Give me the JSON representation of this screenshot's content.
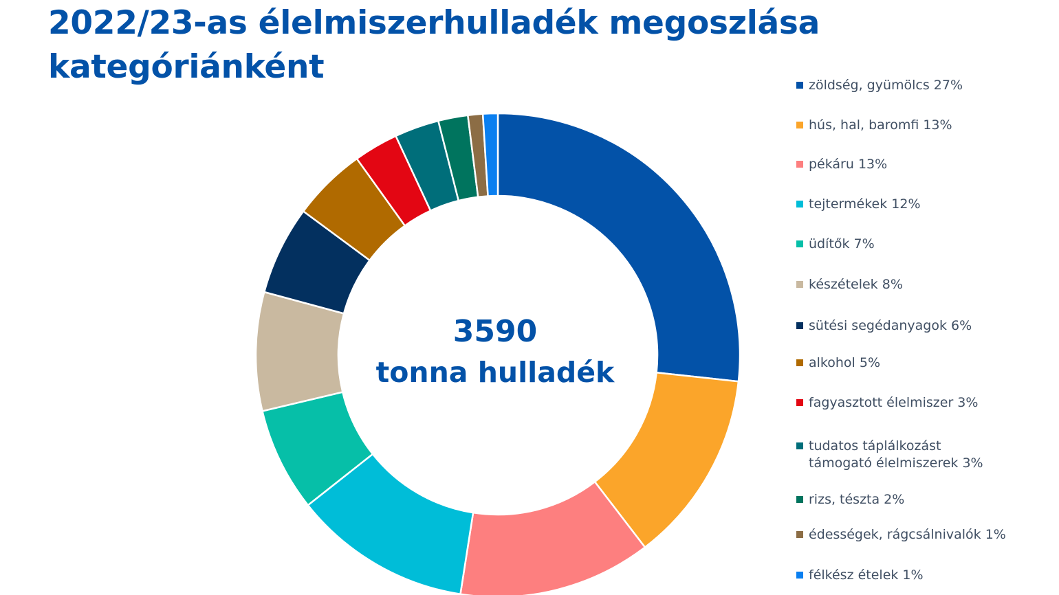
{
  "title": "2022/23-as élelmiszerhulladék megoszlása kategóriánként",
  "center": {
    "value": "3590",
    "caption": "tonna hulladék"
  },
  "chart_data": {
    "type": "pie",
    "donut": true,
    "title": "2022/23-as élelmiszerhulladék megoszlása kategóriánként",
    "legend_position": "right",
    "total_label": "3590 tonna hulladék",
    "unit": "%",
    "categories": [
      "zöldség, gyümölcs",
      "hús, hal, baromfi",
      "pékáru",
      "tejtermékek",
      "üdítők",
      "készételek",
      "sütési segédanyagok",
      "alkohol",
      "fagyasztott élelmiszer",
      "tudatos táplálkozást támogató élelmiszerek",
      "rizs, tészta",
      "édességek, rágcsálnivalók",
      "félkész ételek"
    ],
    "values": [
      27,
      13,
      13,
      12,
      7,
      8,
      6,
      5,
      3,
      3,
      2,
      1,
      1
    ],
    "colors": [
      "#0352a8",
      "#fba52a",
      "#fd7f7f",
      "#00bdd8",
      "#06bfa8",
      "#c9b9a0",
      "#03305f",
      "#b06a00",
      "#e30613",
      "#006e7a",
      "#00745e",
      "#8c6d45",
      "#0a7ff0"
    ],
    "legend_labels": [
      "zöldség, gyümölcs 27%",
      "hús, hal, baromfi 13%",
      "pékáru 13%",
      "tejtermékek 12%",
      "üdítők 7%",
      "készételek 8%",
      "sütési segédanyagok 6%",
      "alkohol 5%",
      "fagyasztott élelmiszer 3%",
      "tudatos táplálkozást\ntámogató élelmiszerek 3%",
      "rizs, tészta 2%",
      "édességek, rágcsálnivalók 1%",
      "félkész ételek 1%"
    ]
  }
}
